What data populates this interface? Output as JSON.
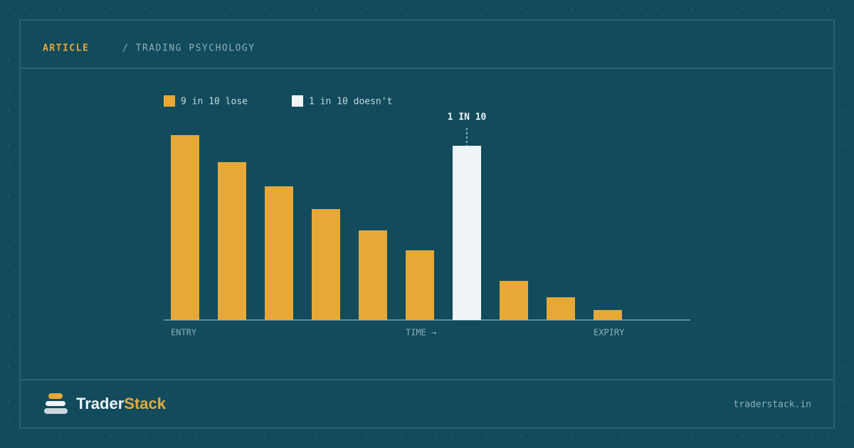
{
  "header": {
    "label": "ARTICLE",
    "section": "/ TRADING PSYCHOLOGY"
  },
  "chart_data": {
    "type": "bar",
    "categories": [
      "ENTRY",
      null,
      null,
      null,
      null,
      "TIME →",
      null,
      null,
      null,
      "EXPIRY"
    ],
    "series": [
      {
        "name": "9 in 10 lose",
        "color": "#e8a838",
        "values": [
          260,
          222,
          188,
          156,
          126,
          98,
          null,
          55,
          32,
          14
        ]
      },
      {
        "name": "1 in 10 doesn't",
        "color": "#eef4f7",
        "values": [
          null,
          null,
          null,
          null,
          null,
          null,
          245,
          null,
          null,
          null
        ]
      }
    ],
    "ylim": [
      0,
      260
    ],
    "annotation": {
      "text": "1 IN 10",
      "index": 6
    }
  },
  "footer": {
    "brand_first": "Trader",
    "brand_second": "Stack",
    "url": "traderstack.in"
  }
}
